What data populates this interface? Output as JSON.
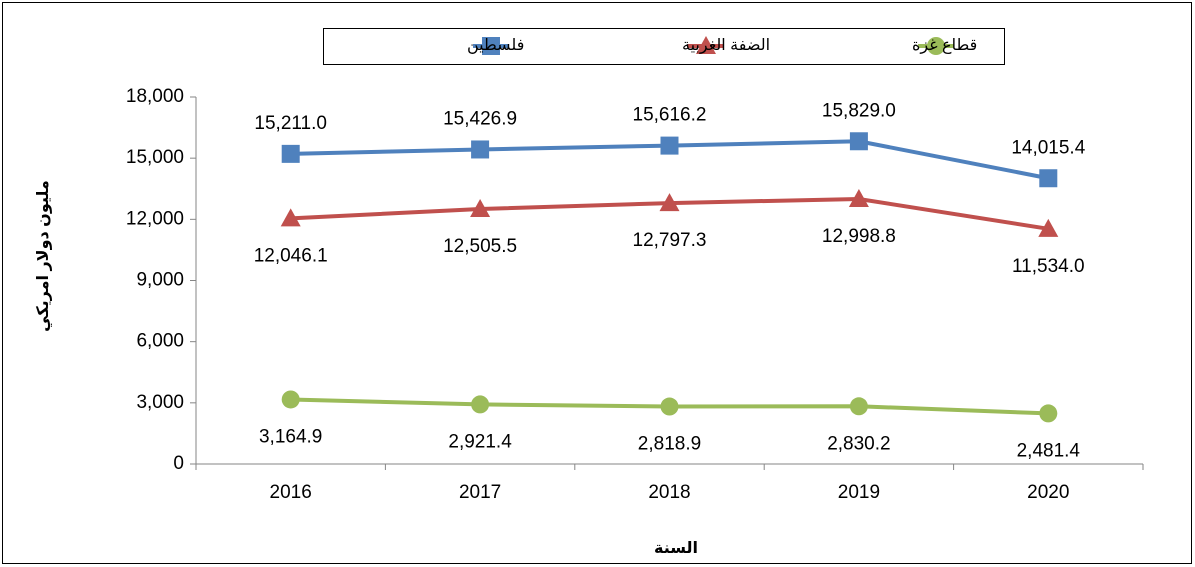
{
  "chart_data": {
    "type": "line",
    "x_label": "السنة",
    "y_label": "مليون دولار امريكي",
    "categories": [
      "2016",
      "2017",
      "2018",
      "2019",
      "2020"
    ],
    "series": [
      {
        "name": "فلسطين",
        "color": "#4f81bd",
        "marker": "square",
        "values": [
          15211.0,
          15426.9,
          15616.2,
          15829.0,
          14015.4
        ],
        "value_labels": [
          "15,211.0",
          "15,426.9",
          "15,616.2",
          "15,829.0",
          "14,015.4"
        ]
      },
      {
        "name": "الضفة الغربية",
        "color": "#c0504d",
        "marker": "triangle",
        "values": [
          12046.1,
          12505.5,
          12797.3,
          12998.8,
          11534.0
        ],
        "value_labels": [
          "12,046.1",
          "12,505.5",
          "12,797.3",
          "12,998.8",
          "11,534.0"
        ]
      },
      {
        "name": "قطاع غزة",
        "color": "#9bbb59",
        "marker": "circle",
        "values": [
          3164.9,
          2921.4,
          2818.9,
          2830.2,
          2481.4
        ],
        "value_labels": [
          "3,164.9",
          "2,921.4",
          "2,818.9",
          "2,830.2",
          "2,481.4"
        ]
      }
    ],
    "ylim": [
      0,
      18000
    ],
    "yticks": [
      0,
      {
        "value": 3000,
        "label": "3,000"
      },
      {
        "value": 6000,
        "label": "6,000"
      },
      {
        "value": 9000,
        "label": "9,000"
      },
      {
        "value": 12000,
        "label": "12,000"
      },
      {
        "value": 15000,
        "label": "15,000"
      },
      {
        "value": 18000,
        "label": "18,000"
      }
    ],
    "grid": false,
    "legend": "top"
  }
}
